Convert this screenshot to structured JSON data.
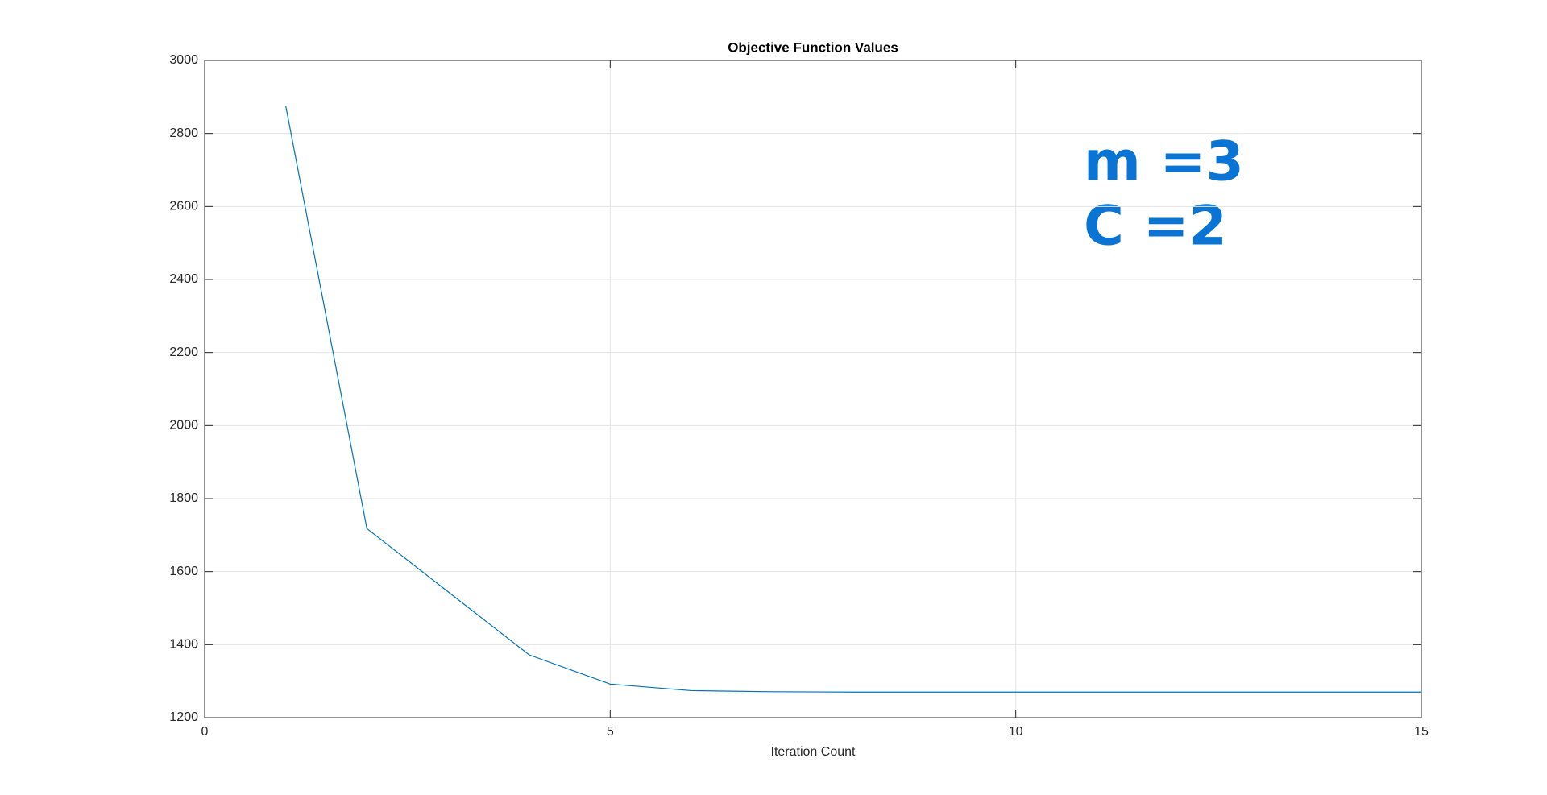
{
  "chart_data": {
    "type": "line",
    "title": "Objective Function Values",
    "x_label": "Iteration Count",
    "x": [
      1,
      2,
      3,
      4,
      5,
      6,
      7,
      8,
      9,
      10,
      11,
      12,
      13,
      14,
      15
    ],
    "series": [
      {
        "name": "Objective",
        "color": "#0072bd",
        "values": [
          2875,
          1718,
          1545,
          1372,
          1292,
          1274,
          1271,
          1270,
          1270,
          1270,
          1270,
          1270,
          1270,
          1270,
          1270
        ]
      }
    ],
    "xlim": [
      0,
      15
    ],
    "xticks": [
      0,
      5,
      10,
      15
    ],
    "ylim": [
      1200,
      3000
    ],
    "yticks": [
      1200,
      1400,
      1600,
      1800,
      2000,
      2200,
      2400,
      2600,
      2800,
      3000
    ],
    "grid": true,
    "annotations": [
      "m =3",
      "C =2"
    ]
  }
}
